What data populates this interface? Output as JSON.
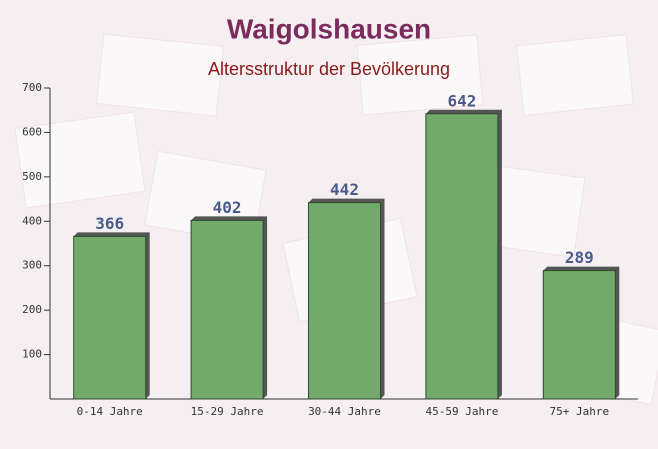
{
  "chart_data": {
    "type": "bar",
    "title": "Waigolshausen",
    "subtitle": "Altersstruktur der Bevölkerung",
    "categories": [
      "0-14 Jahre",
      "15-29 Jahre",
      "30-44 Jahre",
      "45-59 Jahre",
      "75+ Jahre"
    ],
    "values": [
      366,
      402,
      442,
      642,
      289
    ],
    "color": "#6aa564",
    "ylim": [
      0,
      700
    ],
    "yticks": [
      100,
      200,
      300,
      400,
      500,
      600,
      700
    ]
  }
}
